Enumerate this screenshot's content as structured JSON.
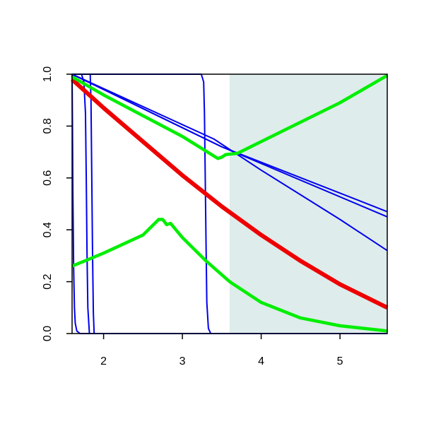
{
  "chart_data": {
    "type": "line",
    "xlim": [
      1.6,
      5.6
    ],
    "ylim": [
      0,
      1
    ],
    "xticks": [
      2,
      3,
      4,
      5
    ],
    "yticks": [
      {
        "value": 0,
        "label": "0.0"
      },
      0.2,
      0.4,
      0.6,
      0.8,
      {
        "value": 1,
        "label": "1.0"
      }
    ],
    "shaded_region": [
      3.6,
      5.6
    ],
    "shade_color": "#deeceb",
    "series": [
      {
        "color": "#0000ee",
        "width": 2,
        "x": [
          1.6,
          1.605,
          1.61,
          1.62,
          1.63,
          1.64,
          1.66,
          1.7,
          5.6
        ],
        "values": [
          1,
          0.8,
          0.55,
          0.25,
          0.1,
          0.04,
          0.01,
          0,
          0
        ]
      },
      {
        "color": "#0000ee",
        "width": 2,
        "x": [
          1.6,
          1.72,
          1.75,
          1.77,
          1.78,
          1.79,
          1.8,
          1.82,
          5.6
        ],
        "values": [
          1,
          1,
          0.97,
          0.85,
          0.6,
          0.3,
          0.1,
          0,
          0
        ]
      },
      {
        "color": "#0000ee",
        "width": 2,
        "x": [
          1.6,
          1.83,
          1.84,
          1.85,
          1.86,
          1.87,
          1.88,
          5.6
        ],
        "values": [
          1,
          1,
          0.9,
          0.6,
          0.3,
          0.08,
          0,
          0
        ]
      },
      {
        "color": "#0000ee",
        "width": 2,
        "x": [
          1.6,
          3.24,
          3.27,
          3.28,
          3.29,
          3.3,
          3.31,
          3.33,
          3.36,
          5.6
        ],
        "values": [
          1,
          1,
          0.97,
          0.85,
          0.6,
          0.35,
          0.12,
          0.02,
          0,
          0
        ]
      },
      {
        "color": "#0000ee",
        "width": 2,
        "x": [
          1.6,
          3.5,
          5.6
        ],
        "values": [
          1,
          0.72,
          0.47
        ]
      },
      {
        "color": "#0000ee",
        "width": 2,
        "x": [
          1.6,
          3.5,
          5.6
        ],
        "values": [
          1,
          0.72,
          0.45
        ]
      },
      {
        "color": "#0000ee",
        "width": 2,
        "x": [
          1.6,
          3.4,
          4,
          5,
          5.6
        ],
        "values": [
          1,
          0.75,
          0.63,
          0.44,
          0.32
        ]
      },
      {
        "color": "#ee0000",
        "width": 6,
        "x": [
          1.6,
          2,
          2.5,
          3,
          3.5,
          4,
          4.5,
          5,
          5.6
        ],
        "values": [
          0.98,
          0.87,
          0.74,
          0.61,
          0.49,
          0.38,
          0.28,
          0.19,
          0.1
        ]
      },
      {
        "color": "#00ee00",
        "width": 4.5,
        "x": [
          1.6,
          2,
          2.5,
          3,
          3.45,
          3.5,
          3.55,
          3.7,
          4,
          5,
          5.6
        ],
        "values": [
          0.99,
          0.92,
          0.84,
          0.76,
          0.675,
          0.68,
          0.69,
          0.695,
          0.74,
          0.89,
          0.995
        ]
      },
      {
        "color": "#00ee00",
        "width": 4.5,
        "x": [
          1.6,
          2,
          2.5,
          2.7,
          2.75,
          2.8,
          2.85,
          3,
          3.3,
          3.6,
          4,
          4.5,
          5,
          5.6
        ],
        "values": [
          0.26,
          0.31,
          0.38,
          0.44,
          0.44,
          0.42,
          0.425,
          0.37,
          0.28,
          0.2,
          0.12,
          0.06,
          0.03,
          0.01
        ]
      }
    ]
  }
}
